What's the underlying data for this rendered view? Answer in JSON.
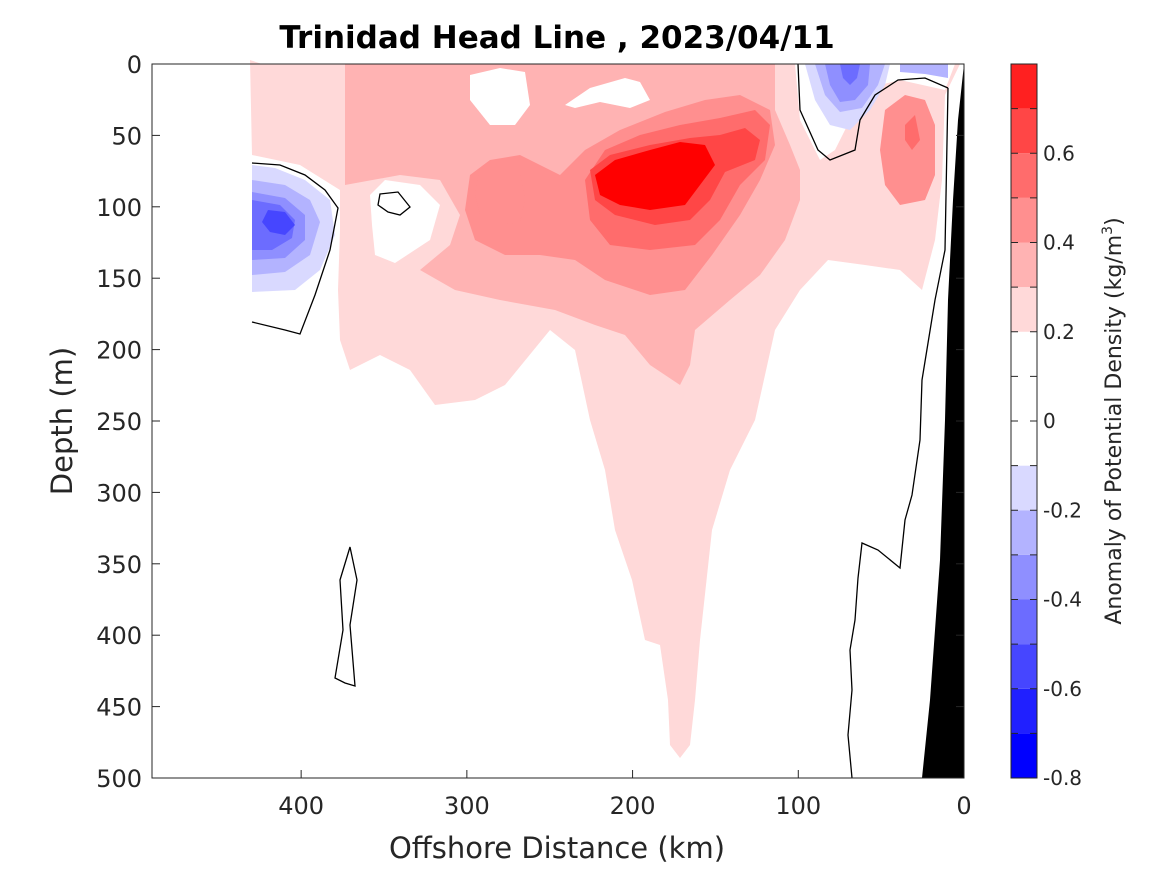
{
  "chart_data": {
    "type": "contour",
    "title": "Trinidad Head Line , 2023/04/11",
    "xlabel": "Offshore Distance (km)",
    "ylabel": "Depth (m)",
    "xlim": [
      490,
      0
    ],
    "ylim": [
      500,
      0
    ],
    "x_reversed": true,
    "y_reversed": true,
    "xticks": [
      "400",
      "300",
      "200",
      "100",
      "0"
    ],
    "yticks": [
      "0",
      "50",
      "100",
      "150",
      "200",
      "250",
      "300",
      "350",
      "400",
      "450",
      "500"
    ],
    "colorbar": {
      "label": "Anomaly of Potential Density (kg/m³)",
      "label_prefix": "Anomaly of Potential Density (kg/m",
      "label_sup": "3",
      "label_suffix": ")",
      "range": [
        -0.8,
        0.8
      ],
      "levels": [
        -0.8,
        -0.7,
        -0.6,
        -0.5,
        -0.4,
        -0.3,
        -0.2,
        -0.1,
        0.1,
        0.2,
        0.3,
        0.4,
        0.5,
        0.6,
        0.7,
        0.8
      ],
      "tick_labels": [
        "-0.8",
        "-0.6",
        "-0.4",
        "-0.2",
        "0",
        "0.2",
        "0.4",
        "0.6"
      ],
      "colors": [
        "#0000ff",
        "#2020ff",
        "#4646ff",
        "#6c6cff",
        "#8f8fff",
        "#b3b3ff",
        "#d9d9ff",
        "#ffffff",
        "#ffffff",
        "#ffd9d9",
        "#ffb3b3",
        "#ff8f8f",
        "#ff6c6c",
        "#ff4646",
        "#ff2020",
        "#ff0000"
      ]
    },
    "features": [
      {
        "name": "peak-positive-anomaly",
        "x": 190,
        "depth": 80,
        "value": 0.8
      },
      {
        "name": "positive-lobe-west",
        "x": 280,
        "depth": 95,
        "value": 0.4
      },
      {
        "name": "positive-lobe-nearshore",
        "x": 35,
        "depth": 65,
        "value": 0.4
      },
      {
        "name": "negative-eddy-offshore",
        "x": 410,
        "depth": 110,
        "value": -0.6
      },
      {
        "name": "negative-eddy-surface",
        "x": 70,
        "depth": 15,
        "value": -0.4
      },
      {
        "name": "positive-tongue-bottom",
        "x": 175,
        "depth": 480,
        "value": 0.2
      }
    ],
    "bathymetry": {
      "color": "#000000",
      "points": [
        [
          25,
          500
        ],
        [
          0,
          500
        ],
        [
          0,
          0
        ]
      ]
    }
  }
}
